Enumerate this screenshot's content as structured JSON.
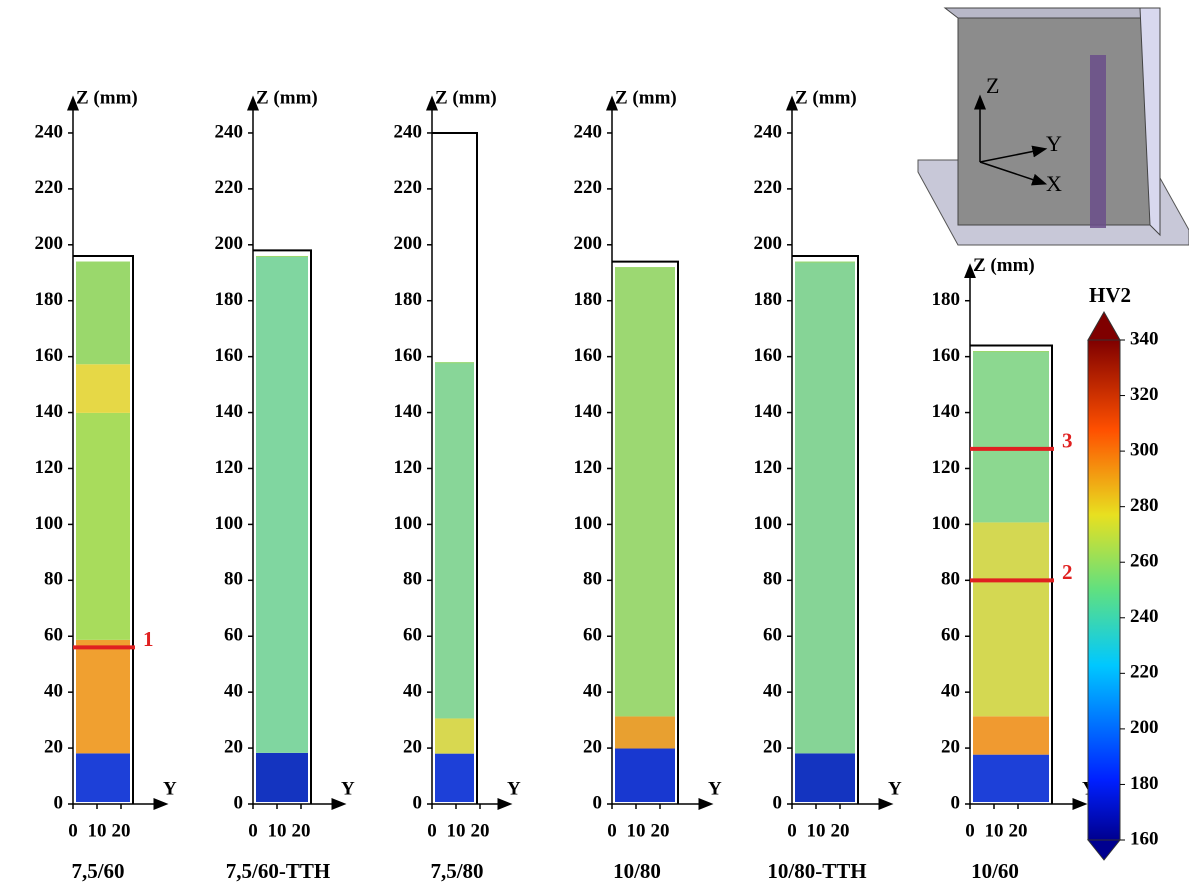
{
  "figure": {
    "axis_label": "Z (mm)",
    "y_axis_label": "Y",
    "y_ticks": [
      0,
      10,
      20
    ],
    "panels": [
      {
        "label": "7,5/60",
        "zticks": [
          0,
          20,
          40,
          60,
          80,
          100,
          120,
          140,
          160,
          180,
          200,
          220,
          240
        ],
        "wall_top": 196,
        "map_top": 194,
        "lines": [
          {
            "label": "1",
            "z": 56
          }
        ]
      },
      {
        "label": "7,5/60-TTH",
        "zticks": [
          0,
          20,
          40,
          60,
          80,
          100,
          120,
          140,
          160,
          180,
          200,
          220,
          240
        ],
        "wall_top": 198,
        "map_top": 196,
        "lines": []
      },
      {
        "label": "7,5/80",
        "zticks": [
          0,
          20,
          40,
          60,
          80,
          100,
          120,
          140,
          160,
          180,
          200,
          220,
          240
        ],
        "wall_top": 240,
        "map_top": 158,
        "lines": []
      },
      {
        "label": "10/80",
        "zticks": [
          0,
          20,
          40,
          60,
          80,
          100,
          120,
          140,
          160,
          180,
          200,
          220,
          240
        ],
        "wall_top": 194,
        "map_top": 192,
        "lines": []
      },
      {
        "label": "10/80-TTH",
        "zticks": [
          0,
          20,
          40,
          60,
          80,
          100,
          120,
          140,
          160,
          180,
          200,
          220,
          240
        ],
        "wall_top": 196,
        "map_top": 194,
        "lines": []
      },
      {
        "label": "10/60",
        "zticks": [
          0,
          20,
          40,
          60,
          80,
          100,
          120,
          140,
          160,
          180
        ],
        "wall_top": 164,
        "map_top": 162,
        "lines": [
          {
            "label": "3",
            "z": 127
          },
          {
            "label": "2",
            "z": 80
          }
        ]
      }
    ],
    "colorbar": {
      "title": "HV2",
      "range": [
        160,
        340
      ],
      "ticks": [
        160,
        180,
        200,
        220,
        240,
        260,
        280,
        300,
        320,
        340
      ]
    },
    "diagram": {
      "z": "Z",
      "y": "Y",
      "x": "X"
    }
  }
}
